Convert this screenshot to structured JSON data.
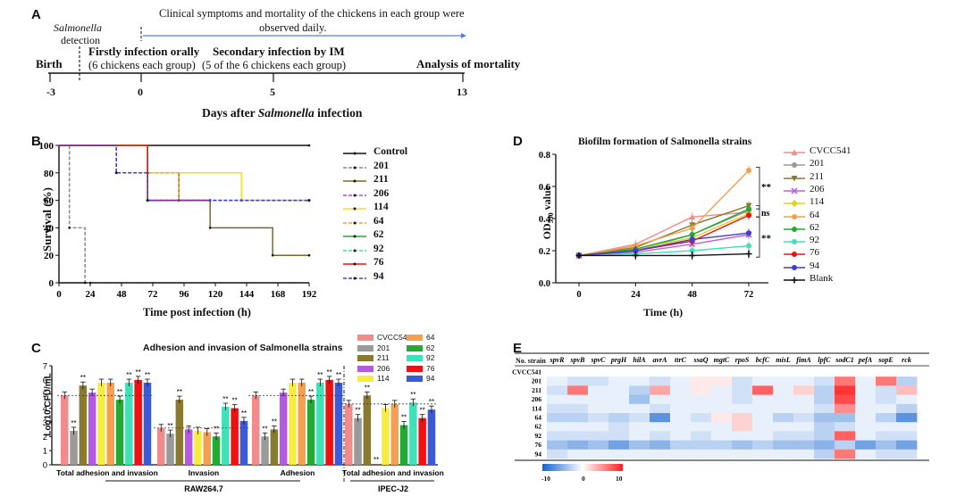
{
  "panelA": {
    "label": "A",
    "clinical_note_line1": "Clinical symptoms and mortality of the chickens in each group were",
    "clinical_note_line2": "observed daily.",
    "salmonella_word": "Salmonella",
    "detection_word": "detection",
    "birth": "Birth",
    "first_infection_line1": "Firstly infection orally",
    "first_infection_line2": "(6 chickens each group)",
    "second_infection_line1": "Secondary infection by IM",
    "second_infection_line2": "(5 of the 6 chickens each group)",
    "analysis": "Analysis of mortality",
    "ticks": [
      "-3",
      "0",
      "5",
      "13"
    ],
    "axis_title_pre": "Days after ",
    "axis_title_ital": "Salmonella",
    "axis_title_post": " infection"
  },
  "panelB": {
    "label": "B",
    "ylabel": "Survival (%)",
    "xlabel": "Time post infection (h)",
    "yticks": [
      "0",
      "20",
      "40",
      "60",
      "80",
      "100"
    ],
    "xticks": [
      "0",
      "24",
      "48",
      "72",
      "96",
      "120",
      "144",
      "168",
      "192"
    ],
    "legend": [
      {
        "name": "Control",
        "color": "#111111",
        "dash": false
      },
      {
        "name": "201",
        "color": "#888888",
        "dash": true
      },
      {
        "name": "211",
        "color": "#7a6a2a",
        "dash": false
      },
      {
        "name": "206",
        "color": "#b24ad6",
        "dash": true
      },
      {
        "name": "114",
        "color": "#f0e020",
        "dash": false
      },
      {
        "name": "64",
        "color": "#f5a040",
        "dash": true
      },
      {
        "name": "62",
        "color": "#22aa33",
        "dash": false
      },
      {
        "name": "92",
        "color": "#40d8b0",
        "dash": true
      },
      {
        "name": "76",
        "color": "#ee1111",
        "dash": false
      },
      {
        "name": "94",
        "color": "#4040cc",
        "dash": true
      }
    ]
  },
  "panelC": {
    "label": "C",
    "title": "Adhesion and invasion of Salmonella strains",
    "ylabel": "Log10 CFU/mL",
    "yticks": [
      "0",
      "1",
      "2",
      "3",
      "4",
      "5",
      "6",
      "7"
    ],
    "legend": [
      {
        "name": "CVCC541",
        "color": "#f28b8b"
      },
      {
        "name": "201",
        "color": "#9a9a9a"
      },
      {
        "name": "211",
        "color": "#8a7a30"
      },
      {
        "name": "206",
        "color": "#b35ae0"
      },
      {
        "name": "114",
        "color": "#f5ee40"
      },
      {
        "name": "64",
        "color": "#f5a050"
      },
      {
        "name": "62",
        "color": "#22aa33"
      },
      {
        "name": "92",
        "color": "#40e0b8"
      },
      {
        "name": "76",
        "color": "#ee1111"
      },
      {
        "name": "94",
        "color": "#3b5ad8"
      }
    ],
    "groups": [
      "Total adhesion and invasion",
      "Invasion",
      "Adhesion",
      "Total adhesion and invasion"
    ],
    "cell_labels": [
      "RAW264.7",
      "IPEC-J2"
    ],
    "sig": "**"
  },
  "chart_data": [
    {
      "type": "line",
      "title": "",
      "xlabel": "Time post infection (h)",
      "ylabel": "Survival (%)",
      "x": [
        0,
        24,
        48,
        72,
        96,
        120,
        144,
        168,
        192
      ],
      "ylim": [
        0,
        100
      ],
      "series": [
        {
          "name": "Control",
          "points": [
            [
              0,
              100
            ],
            [
              192,
              100
            ]
          ]
        },
        {
          "name": "201",
          "points": [
            [
              0,
              100
            ],
            [
              8,
              100
            ],
            [
              8,
              40
            ],
            [
              20,
              40
            ],
            [
              20,
              0
            ],
            [
              24,
              0
            ]
          ]
        },
        {
          "name": "211",
          "points": [
            [
              0,
              100
            ],
            [
              68,
              100
            ],
            [
              68,
              80
            ],
            [
              92,
              80
            ],
            [
              92,
              60
            ],
            [
              116,
              60
            ],
            [
              116,
              40
            ],
            [
              164,
              40
            ],
            [
              164,
              20
            ],
            [
              192,
              20
            ]
          ]
        },
        {
          "name": "206",
          "points": [
            [
              0,
              100
            ],
            [
              44,
              100
            ],
            [
              44,
              80
            ],
            [
              68,
              80
            ],
            [
              68,
              60
            ],
            [
              192,
              60
            ]
          ]
        },
        {
          "name": "114",
          "points": [
            [
              0,
              100
            ],
            [
              68,
              100
            ],
            [
              68,
              80
            ],
            [
              140,
              80
            ],
            [
              140,
              60
            ],
            [
              192,
              60
            ]
          ]
        },
        {
          "name": "64",
          "points": [
            [
              0,
              100
            ],
            [
              68,
              100
            ],
            [
              68,
              80
            ],
            [
              92,
              80
            ],
            [
              92,
              60
            ],
            [
              192,
              60
            ]
          ]
        },
        {
          "name": "62",
          "points": [
            [
              0,
              100
            ],
            [
              68,
              100
            ],
            [
              68,
              60
            ],
            [
              116,
              60
            ]
          ]
        },
        {
          "name": "92",
          "points": [
            [
              0,
              100
            ],
            [
              68,
              100
            ],
            [
              68,
              60
            ],
            [
              192,
              60
            ]
          ]
        },
        {
          "name": "76",
          "points": [
            [
              0,
              100
            ],
            [
              68,
              100
            ],
            [
              68,
              60
            ],
            [
              116,
              60
            ]
          ]
        },
        {
          "name": "94",
          "points": [
            [
              0,
              100
            ],
            [
              44,
              100
            ],
            [
              44,
              80
            ],
            [
              68,
              80
            ],
            [
              68,
              60
            ],
            [
              192,
              60
            ]
          ]
        }
      ]
    },
    {
      "type": "line",
      "title": "Biofilm formation of Salmonella strains",
      "xlabel": "Time (h)",
      "ylabel": "OD590 value",
      "x": [
        0,
        24,
        48,
        72
      ],
      "ylim": [
        0,
        0.8
      ],
      "yticks": [
        "0.0",
        "0.2",
        "0.4",
        "0.6",
        "0.8"
      ],
      "series": [
        {
          "name": "CVCC541",
          "color": "#f28b8b",
          "marker": "triangle",
          "values": [
            0.17,
            0.24,
            0.41,
            0.44
          ]
        },
        {
          "name": "201",
          "color": "#999999",
          "marker": "circle",
          "values": [
            0.17,
            0.2,
            0.3,
            0.45
          ]
        },
        {
          "name": "211",
          "color": "#8a7a30",
          "marker": "tri-down",
          "values": [
            0.17,
            0.22,
            0.36,
            0.48
          ]
        },
        {
          "name": "206",
          "color": "#c060e0",
          "marker": "x",
          "values": [
            0.17,
            0.19,
            0.24,
            0.3
          ]
        },
        {
          "name": "114",
          "color": "#e0d020",
          "marker": "diamond",
          "values": [
            0.17,
            0.21,
            0.28,
            0.43
          ]
        },
        {
          "name": "64",
          "color": "#f5a050",
          "marker": "circle",
          "values": [
            0.17,
            0.23,
            0.34,
            0.7
          ]
        },
        {
          "name": "62",
          "color": "#22aa33",
          "marker": "circle",
          "values": [
            0.17,
            0.21,
            0.3,
            0.46
          ]
        },
        {
          "name": "92",
          "color": "#40e0b8",
          "marker": "circle",
          "values": [
            0.17,
            0.18,
            0.2,
            0.23
          ]
        },
        {
          "name": "76",
          "color": "#ee1111",
          "marker": "circle",
          "values": [
            0.17,
            0.2,
            0.26,
            0.42
          ]
        },
        {
          "name": "94",
          "color": "#4040cc",
          "marker": "circle",
          "values": [
            0.17,
            0.2,
            0.27,
            0.31
          ]
        },
        {
          "name": "Blank",
          "color": "#111111",
          "marker": "plus",
          "values": [
            0.17,
            0.17,
            0.17,
            0.18
          ]
        }
      ],
      "annotations": [
        "**",
        "ns",
        "**"
      ]
    },
    {
      "type": "bar",
      "title": "Adhesion and invasion of Salmonella strains",
      "ylabel": "Log10 CFU/mL",
      "ylim": [
        0,
        7
      ],
      "categories": [
        "RAW264.7 Total adhesion and invasion",
        "RAW264.7 Invasion",
        "RAW264.7 Adhesion",
        "IPEC-J2 Total adhesion and invasion"
      ],
      "reference_lines": [
        4.9,
        2.6,
        4.9,
        4.3
      ],
      "series": [
        {
          "name": "CVCC541",
          "values": [
            4.9,
            2.6,
            4.9,
            4.3
          ]
        },
        {
          "name": "201",
          "values": [
            2.4,
            2.2,
            2.0,
            3.3
          ]
        },
        {
          "name": "211",
          "values": [
            5.6,
            4.6,
            2.5,
            4.9
          ]
        },
        {
          "name": "206",
          "values": [
            5.1,
            2.5,
            5.1,
            0
          ]
        },
        {
          "name": "114",
          "values": [
            5.8,
            2.4,
            5.8,
            4.0
          ]
        },
        {
          "name": "64",
          "values": [
            5.8,
            2.3,
            5.8,
            4.3
          ]
        },
        {
          "name": "62",
          "values": [
            4.6,
            2.0,
            4.6,
            2.8
          ]
        },
        {
          "name": "92",
          "values": [
            5.8,
            4.1,
            5.8,
            4.4
          ]
        },
        {
          "name": "76",
          "values": [
            6.0,
            4.0,
            6.0,
            3.3
          ]
        },
        {
          "name": "94",
          "values": [
            5.8,
            3.1,
            5.8,
            3.9
          ]
        }
      ]
    },
    {
      "type": "heatmap",
      "columns": [
        "spvR",
        "spvB",
        "spvC",
        "prgH",
        "hilA",
        "avrA",
        "ttrC",
        "ssaQ",
        "mgtC",
        "rpoS",
        "bcfC",
        "misL",
        "fimA",
        "lpfC",
        "sodC1",
        "pefA",
        "sopE",
        "rck"
      ],
      "rows": [
        "CVCC541",
        "201",
        "211",
        "206",
        "114",
        "64",
        "62",
        "92",
        "76",
        "94"
      ],
      "colorbar": {
        "min": -10,
        "mid": 0,
        "max": 10
      },
      "values": [
        [
          0,
          0,
          0,
          0,
          0,
          0,
          0,
          0,
          0,
          0,
          0,
          0,
          0,
          0,
          0,
          0,
          0,
          0
        ],
        [
          -1,
          -2,
          -2,
          -1,
          -1,
          -2,
          -1,
          1,
          1,
          -2,
          -1,
          -1,
          -1,
          -2,
          6,
          -1,
          6,
          -3
        ],
        [
          -2,
          6,
          -1,
          -1,
          -3,
          4,
          -1,
          1,
          -1,
          -2,
          7,
          -1,
          2,
          -3,
          9,
          -1,
          -2,
          3
        ],
        [
          -1,
          -1,
          -1,
          -1,
          -4,
          -1,
          -1,
          -1,
          -1,
          -2,
          -1,
          -1,
          -1,
          -3,
          8,
          -1,
          -2,
          -1
        ],
        [
          -2,
          -2,
          -1,
          -1,
          -1,
          -2,
          -1,
          -1,
          -1,
          -1,
          -1,
          -1,
          -1,
          -2,
          5,
          -1,
          -1,
          -3
        ],
        [
          -3,
          -3,
          -2,
          -3,
          -2,
          -7,
          -1,
          -2,
          1,
          2,
          -1,
          -3,
          -2,
          -4,
          -4,
          -1,
          -3,
          -7
        ],
        [
          -1,
          -1,
          -1,
          -2,
          -1,
          -1,
          -1,
          -1,
          -1,
          2,
          -1,
          -1,
          -1,
          -3,
          -2,
          -1,
          -1,
          -1
        ],
        [
          -2,
          -2,
          -2,
          -2,
          -1,
          -2,
          -1,
          -2,
          -1,
          -1,
          -1,
          -2,
          -2,
          -3,
          7,
          -1,
          -2,
          -2
        ],
        [
          -4,
          -5,
          -4,
          -6,
          -4,
          -5,
          -3,
          -3,
          -3,
          -4,
          -3,
          -4,
          -4,
          -5,
          -3,
          -6,
          -4,
          -6
        ],
        [
          -2,
          -1,
          -1,
          -1,
          -1,
          -1,
          -1,
          -1,
          -1,
          -1,
          -1,
          -1,
          -1,
          -3,
          6,
          -1,
          -2,
          -2
        ]
      ]
    }
  ],
  "panelD": {
    "label": "D",
    "title": "Biofilm formation of Salmonella strains",
    "ylabel_main": "OD",
    "ylabel_sub": "590",
    "ylabel_tail": " value",
    "xlabel": "Time (h)",
    "xticks": [
      "0",
      "24",
      "48",
      "72"
    ],
    "yticks": [
      "0.0",
      "0.2",
      "0.4",
      "0.6",
      "0.8"
    ],
    "sig_top": "**",
    "sig_mid": "ns",
    "sig_bot": "**"
  },
  "panelE": {
    "label": "E",
    "corner": "No. strain",
    "cbar_min": "-10",
    "cbar_mid": "0",
    "cbar_max": "10"
  }
}
